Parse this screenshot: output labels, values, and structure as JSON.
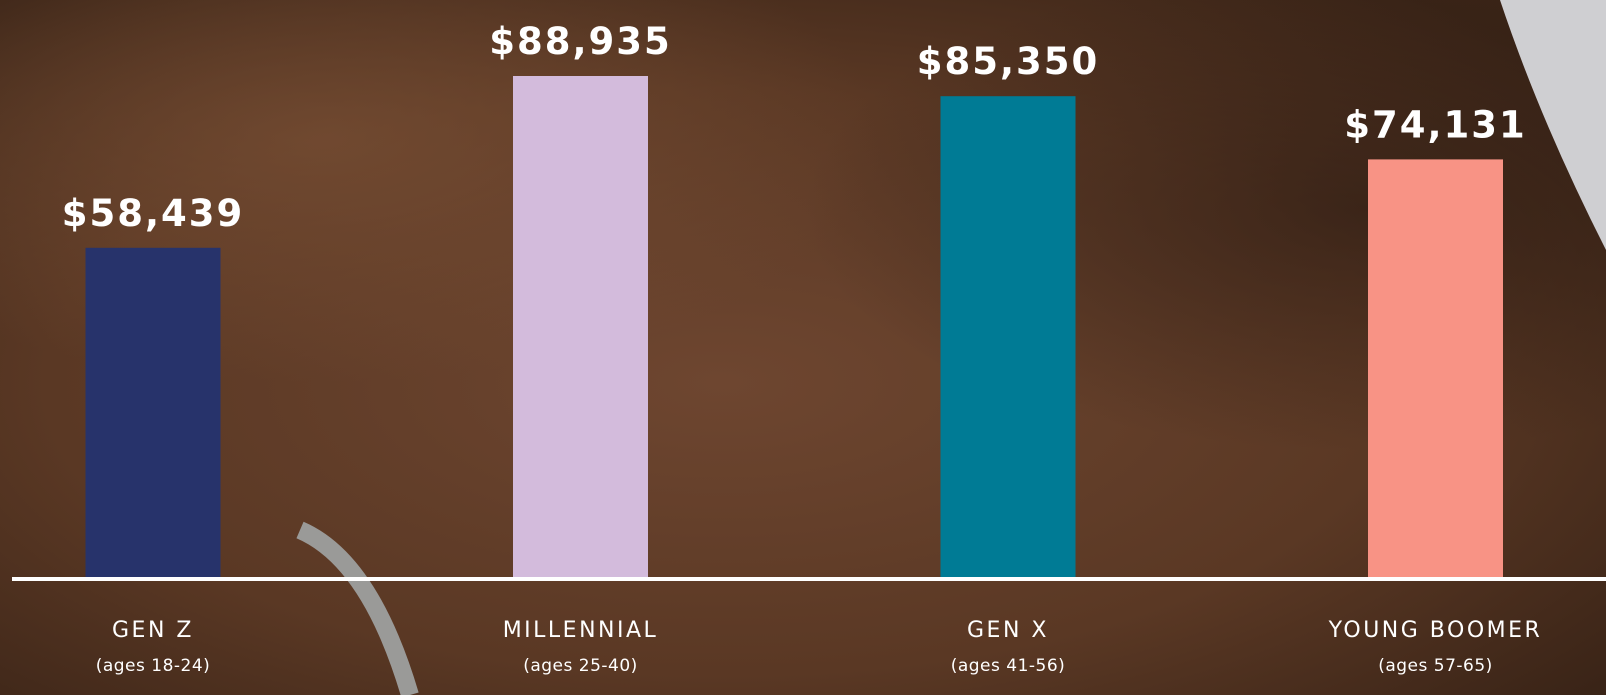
{
  "chart_data": {
    "type": "bar",
    "categories": [
      "GEN Z",
      "MILLENNIAL",
      "GEN X",
      "YOUNG BOOMER"
    ],
    "subcategories": [
      "(ages 18-24)",
      "(ages 25-40)",
      "(ages 41-56)",
      "(ages 57-65)"
    ],
    "values": [
      58439,
      88935,
      85350,
      74131
    ],
    "value_labels": [
      "$58,439",
      "$88,935",
      "$85,350",
      "$74,131"
    ],
    "colors": [
      "#27336b",
      "#d3bbdc",
      "#007b95",
      "#f89385"
    ]
  }
}
